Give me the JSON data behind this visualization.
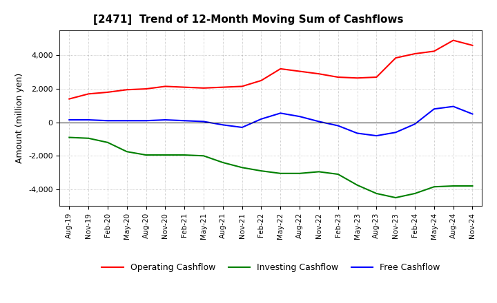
{
  "title": "[2471]  Trend of 12-Month Moving Sum of Cashflows",
  "ylabel": "Amount (million yen)",
  "xlabels": [
    "Aug-19",
    "Nov-19",
    "Feb-20",
    "May-20",
    "Aug-20",
    "Nov-20",
    "Feb-21",
    "May-21",
    "Aug-21",
    "Nov-21",
    "Feb-22",
    "May-22",
    "Aug-22",
    "Nov-22",
    "Feb-23",
    "May-23",
    "Aug-23",
    "Nov-23",
    "Feb-24",
    "May-24",
    "Aug-24",
    "Nov-24"
  ],
  "operating": [
    1400,
    1700,
    1800,
    1950,
    2000,
    2150,
    2100,
    2050,
    2100,
    2150,
    2500,
    3200,
    3050,
    2900,
    2700,
    2650,
    2700,
    3850,
    4100,
    4250,
    4900,
    4600
  ],
  "investing": [
    -900,
    -950,
    -1200,
    -1750,
    -1950,
    -1950,
    -1950,
    -2000,
    -2400,
    -2700,
    -2900,
    -3050,
    -3050,
    -2950,
    -3100,
    -3750,
    -4250,
    -4500,
    -4250,
    -3850,
    -3800,
    -3800
  ],
  "free": [
    150,
    150,
    100,
    100,
    100,
    150,
    100,
    50,
    -150,
    -300,
    200,
    550,
    350,
    50,
    -200,
    -650,
    -800,
    -600,
    -100,
    800,
    950,
    500
  ],
  "operating_color": "#ff0000",
  "investing_color": "#008000",
  "free_color": "#0000ff",
  "ylim": [
    -5000,
    5500
  ],
  "yticks": [
    -4000,
    -2000,
    0,
    2000,
    4000
  ],
  "background_color": "#ffffff",
  "grid_color": "#999999"
}
